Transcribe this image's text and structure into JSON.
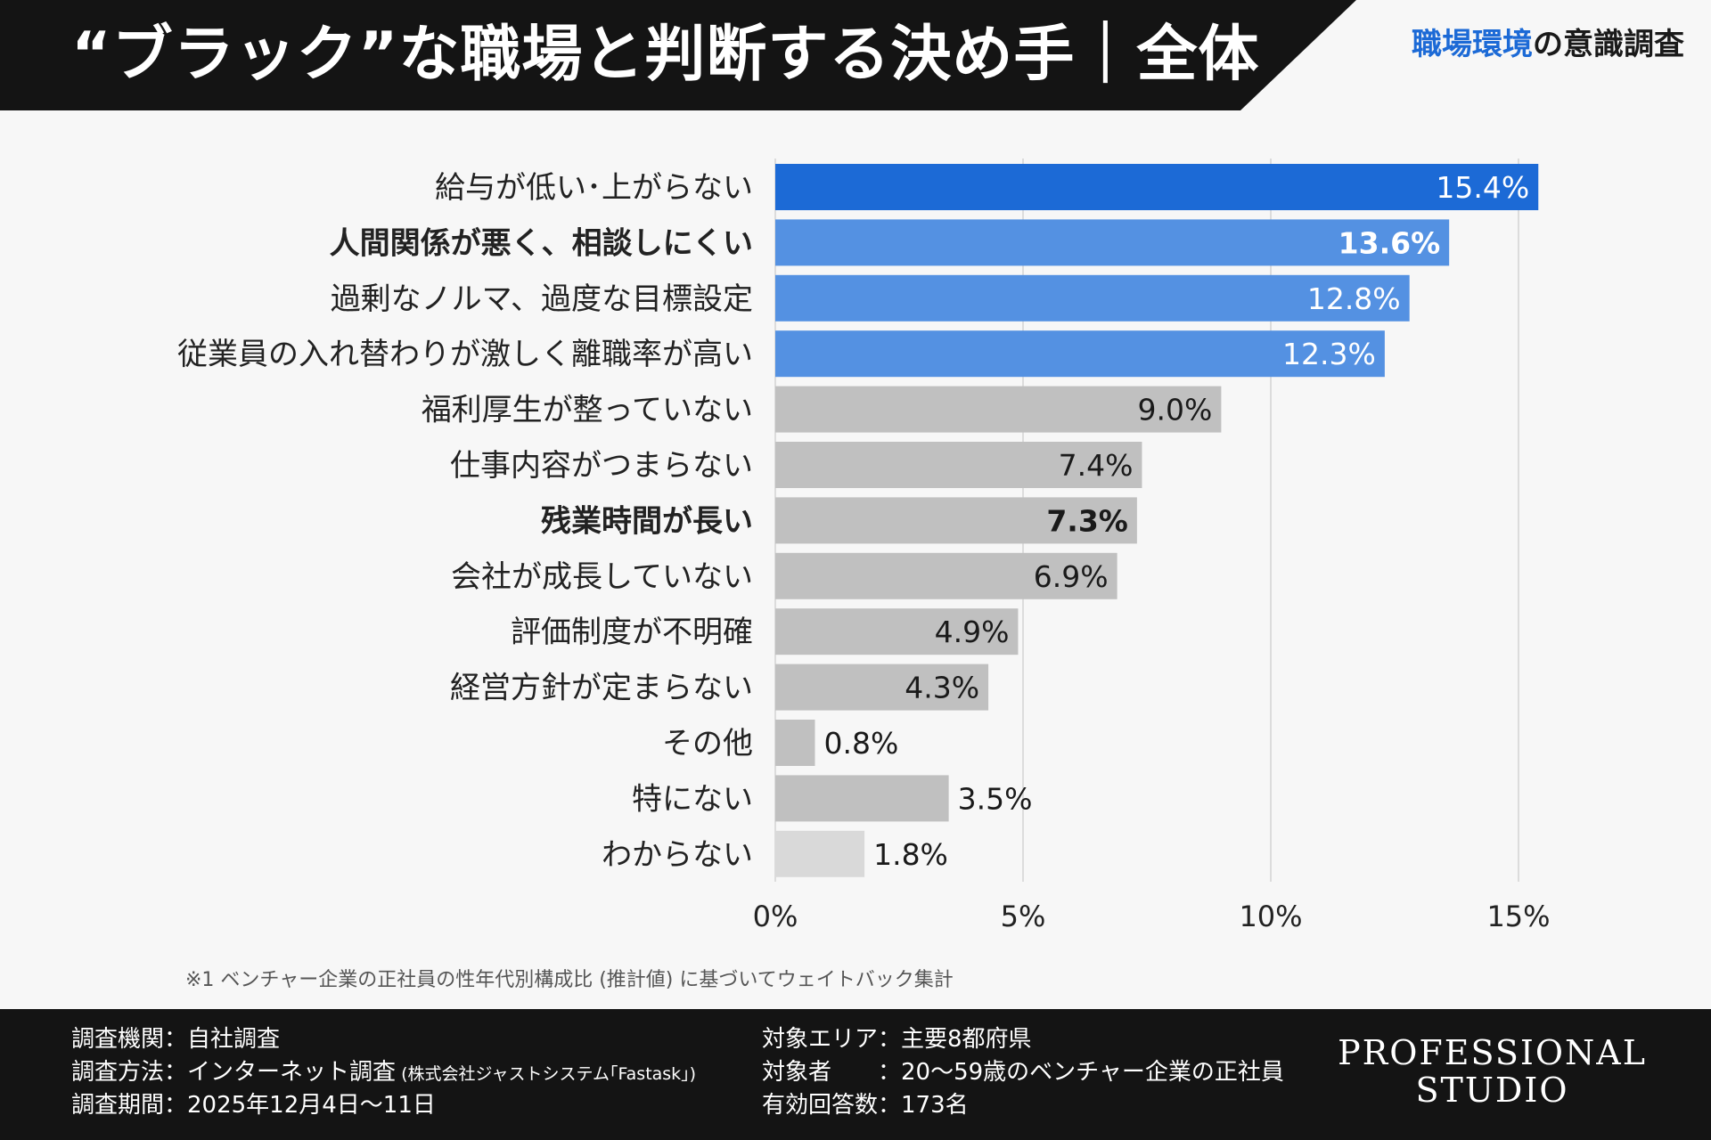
{
  "header": {
    "title": "“ブラック”な職場と判断する決め手｜全体",
    "tagline_accent": "職場環境",
    "tagline_rest": "の意識調査"
  },
  "colors": {
    "accent_dark": "#1c6ad6",
    "accent_light": "#5491e2",
    "gray": "#c0c0c0",
    "gray_light": "#d9d9d9",
    "header_bg": "#141414"
  },
  "chart_data": {
    "type": "bar",
    "orientation": "horizontal",
    "title": "“ブラック”な職場と判断する決め手｜全体",
    "xlim": [
      0,
      15
    ],
    "x_ticks": [
      0,
      5,
      10,
      15
    ],
    "x_tick_labels": [
      "0%",
      "5%",
      "10%",
      "15%"
    ],
    "grid": true,
    "categories": [
      "給与が低い･上がらない",
      "人間関係が悪く、相談しにくい",
      "過剰なノルマ、過度な目標設定",
      "従業員の入れ替わりが激しく離職率が高い",
      "福利厚生が整っていない",
      "仕事内容がつまらない",
      "残業時間が長い",
      "会社が成長していない",
      "評価制度が不明確",
      "経営方針が定まらない",
      "その他",
      "特にない",
      "わからない"
    ],
    "values": [
      15.4,
      13.6,
      12.8,
      12.3,
      9.0,
      7.4,
      7.3,
      6.9,
      4.9,
      4.3,
      0.8,
      3.5,
      1.8
    ],
    "value_labels": [
      "15.4%",
      "13.6%",
      "12.8%",
      "12.3%",
      "9.0%",
      "7.4%",
      "7.3%",
      "6.9%",
      "4.9%",
      "4.3%",
      "0.8%",
      "3.5%",
      "1.8%"
    ],
    "bold": [
      false,
      true,
      false,
      false,
      false,
      false,
      true,
      false,
      false,
      false,
      false,
      false,
      false
    ],
    "color_keys": [
      "accent_dark",
      "accent_light",
      "accent_light",
      "accent_light",
      "gray",
      "gray",
      "gray",
      "gray",
      "gray",
      "gray",
      "gray",
      "gray",
      "gray_light"
    ]
  },
  "footnote": "※1 ベンチャー企業の正社員の性年代別構成比 (推計値) に基づいてウェイトバック集計",
  "footer": {
    "left": [
      {
        "label": "調査機関：",
        "value": "自社調査",
        "note": ""
      },
      {
        "label": "調査方法：",
        "value": "インターネット調査",
        "note": " (株式会社ジャストシステム｢Fastask｣)"
      },
      {
        "label": "調査期間：",
        "value": "2025年12月4日〜11日",
        "note": ""
      }
    ],
    "right": [
      {
        "label": "対象エリア：",
        "value": "主要8都府県"
      },
      {
        "label": "対象者　　：",
        "value": "20〜59歳のベンチャー企業の正社員"
      },
      {
        "label": "有効回答数：",
        "value": "173名"
      }
    ],
    "logo_line1": "PROFESSIONAL",
    "logo_line2": "STUDIO"
  }
}
